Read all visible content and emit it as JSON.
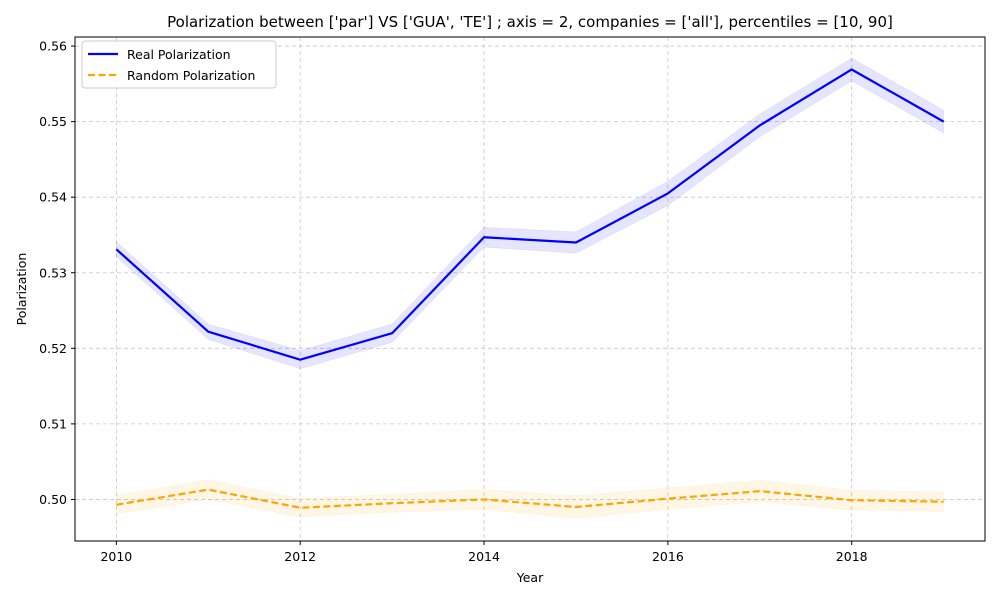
{
  "chart_data": {
    "type": "line",
    "title": "Polarization between ['par'] VS ['GUA', 'TE'] ; axis = 2, companies = ['all'], percentiles = [10, 90]",
    "xlabel": "Year",
    "ylabel": "Polarization",
    "xlim": [
      2009.55,
      2019.45
    ],
    "ylim": [
      0.4945,
      0.5612
    ],
    "xticks": [
      2010,
      2012,
      2014,
      2016,
      2018
    ],
    "yticks": [
      0.5,
      0.51,
      0.52,
      0.53,
      0.54,
      0.55,
      0.56
    ],
    "ytick_labels": [
      "0.50",
      "0.51",
      "0.52",
      "0.53",
      "0.54",
      "0.55",
      "0.56"
    ],
    "grid": true,
    "legend_position": "top-left",
    "x": [
      2010,
      2011,
      2012,
      2013,
      2014,
      2015,
      2016,
      2017,
      2018,
      2019
    ],
    "series": [
      {
        "name": "Real Polarization",
        "values": [
          0.5331,
          0.5222,
          0.5185,
          0.522,
          0.5347,
          0.534,
          0.5405,
          0.5495,
          0.5569,
          0.55
        ],
        "lower": [
          0.5321,
          0.5212,
          0.5173,
          0.5208,
          0.5334,
          0.5326,
          0.5389,
          0.548,
          0.5554,
          0.5485
        ],
        "upper": [
          0.5341,
          0.5232,
          0.5197,
          0.5232,
          0.536,
          0.5354,
          0.5421,
          0.551,
          0.5584,
          0.5515
        ],
        "color": "#0000ff",
        "band_color": "#0000ff",
        "style": "solid"
      },
      {
        "name": "Random Polarization",
        "values": [
          0.4993,
          0.5013,
          0.4989,
          0.4995,
          0.5,
          0.499,
          0.5001,
          0.5011,
          0.4999,
          0.4997
        ],
        "lower": [
          0.4981,
          0.5,
          0.4977,
          0.4983,
          0.4987,
          0.4975,
          0.4987,
          0.4997,
          0.4986,
          0.4984
        ],
        "upper": [
          0.5005,
          0.5026,
          0.5001,
          0.5007,
          0.5013,
          0.5005,
          0.5015,
          0.5025,
          0.5012,
          0.501
        ],
        "color": "#ffa500",
        "band_color": "#ffa500",
        "style": "dashed"
      }
    ]
  }
}
